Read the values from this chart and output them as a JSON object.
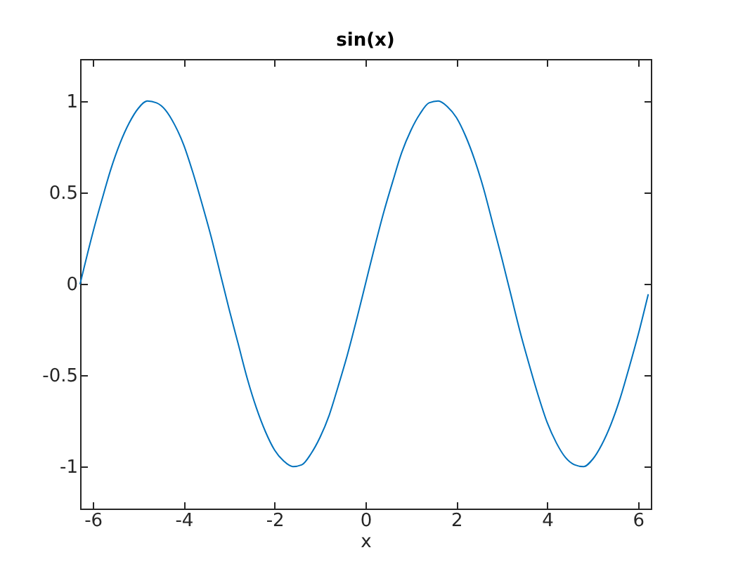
{
  "chart_data": {
    "type": "line",
    "title": "sin(x)",
    "xlabel": "x",
    "x": [
      -6.28,
      -6.0,
      -5.8,
      -5.6,
      -5.4,
      -5.2,
      -5.0,
      -4.8,
      -4.6,
      -4.4,
      -4.2,
      -4.0,
      -3.8,
      -3.6,
      -3.4,
      -3.2,
      -3.0,
      -2.8,
      -2.6,
      -2.4,
      -2.2,
      -2.0,
      -1.8,
      -1.6,
      -1.4,
      -1.2,
      -1.0,
      -0.8,
      -0.6,
      -0.4,
      -0.2,
      0,
      0.2,
      0.4,
      0.6,
      0.8,
      1.0,
      1.2,
      1.4,
      1.6,
      1.8,
      2.0,
      2.2,
      2.4,
      2.6,
      2.8,
      3.0,
      3.2,
      3.4,
      3.6,
      3.8,
      4.0,
      4.2,
      4.4,
      4.6,
      4.8,
      5.0,
      5.2,
      5.4,
      5.6,
      5.8,
      6.0,
      6.22
    ],
    "values": [
      0.0,
      0.28,
      0.46,
      0.63,
      0.77,
      0.88,
      0.96,
      1.0,
      0.99,
      0.95,
      0.87,
      0.76,
      0.61,
      0.44,
      0.26,
      0.06,
      -0.14,
      -0.33,
      -0.52,
      -0.68,
      -0.81,
      -0.91,
      -0.97,
      -1.0,
      -0.99,
      -0.93,
      -0.84,
      -0.72,
      -0.56,
      -0.39,
      -0.2,
      0,
      0.2,
      0.39,
      0.56,
      0.72,
      0.84,
      0.93,
      0.99,
      1.0,
      0.97,
      0.91,
      0.81,
      0.68,
      0.52,
      0.33,
      0.14,
      -0.06,
      -0.26,
      -0.44,
      -0.61,
      -0.76,
      -0.87,
      -0.95,
      -0.99,
      -1.0,
      -0.96,
      -0.88,
      -0.77,
      -0.63,
      -0.46,
      -0.28,
      -0.06
    ],
    "color": "#0072bd",
    "xlim": [
      -6.28,
      6.28
    ],
    "ylim": [
      -1.23,
      1.23
    ],
    "xticks": [
      -6,
      -4,
      -2,
      0,
      2,
      4,
      6
    ],
    "yticks": [
      -1,
      -0.5,
      0,
      0.5,
      1
    ]
  }
}
